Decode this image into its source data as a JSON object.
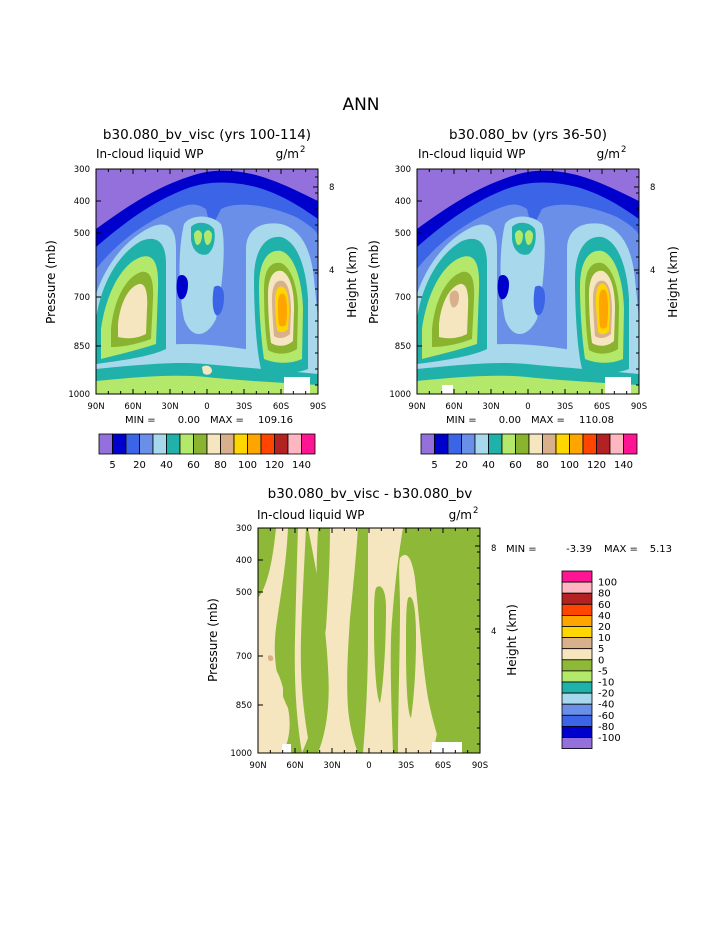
{
  "figure": {
    "super_title": "ANN",
    "colors": {
      "levels": [
        "#9370DB",
        "#0000CD",
        "#3C64E6",
        "#6A8FE8",
        "#A8D8EC",
        "#20B2AA",
        "#B4E86A",
        "#8AB430",
        "#F5E6C0",
        "#D8B08C",
        "#FFD700",
        "#FFA500",
        "#FF4500",
        "#B22222",
        "#FFB6C1",
        "#FF1493"
      ],
      "diff_green": "#8DB838",
      "diff_tan": "#F5E6C0"
    }
  },
  "chart_data": [
    {
      "type": "contour",
      "title": "b30.080_bv_visc (yrs 100-114)",
      "subtitle_left": "In-cloud liquid WP",
      "subtitle_right": "g/m",
      "units_sup": "2",
      "ylabel": "Pressure (mb)",
      "y2label": "Height (km)",
      "x_ticks": [
        "90N",
        "60N",
        "30N",
        "0",
        "30S",
        "60S",
        "90S"
      ],
      "y_ticks": [
        "300",
        "400",
        "500",
        "700",
        "850",
        "1000"
      ],
      "y2_ticks": [
        "8",
        "4"
      ],
      "min_label": "MIN =",
      "min_value": "0.00",
      "max_label": "MAX =",
      "max_value": "109.16",
      "colorbar_labels": [
        "5",
        "20",
        "40",
        "60",
        "80",
        "100",
        "120",
        "140"
      ]
    },
    {
      "type": "contour",
      "title": "b30.080_bv (yrs 36-50)",
      "subtitle_left": "In-cloud liquid WP",
      "subtitle_right": "g/m",
      "units_sup": "2",
      "ylabel": "Pressure (mb)",
      "y2label": "Height (km)",
      "x_ticks": [
        "90N",
        "60N",
        "30N",
        "0",
        "30S",
        "60S",
        "90S"
      ],
      "y_ticks": [
        "300",
        "400",
        "500",
        "700",
        "850",
        "1000"
      ],
      "y2_ticks": [
        "8",
        "4"
      ],
      "min_label": "MIN =",
      "min_value": "0.00",
      "max_label": "MAX =",
      "max_value": "110.08",
      "colorbar_labels": [
        "5",
        "20",
        "40",
        "60",
        "80",
        "100",
        "120",
        "140"
      ]
    },
    {
      "type": "contour",
      "title": "b30.080_bv_visc - b30.080_bv",
      "subtitle_left": "In-cloud liquid WP",
      "subtitle_right": "g/m",
      "units_sup": "2",
      "ylabel": "Pressure (mb)",
      "y2label": "Height (km)",
      "x_ticks": [
        "90N",
        "60N",
        "30N",
        "0",
        "30S",
        "60S",
        "90S"
      ],
      "y_ticks": [
        "300",
        "400",
        "500",
        "700",
        "850",
        "1000"
      ],
      "y2_ticks": [
        "8",
        "4"
      ],
      "min_label": "MIN =",
      "min_value": "-3.39",
      "max_label": "MAX =",
      "max_value": "5.13",
      "colorbar_labels": [
        "100",
        "80",
        "60",
        "40",
        "20",
        "10",
        "5",
        "0",
        "-5",
        "-10",
        "-20",
        "-40",
        "-60",
        "-80",
        "-100"
      ],
      "colorbar_colors": [
        "#FF1493",
        "#FFB6C1",
        "#B22222",
        "#FF4500",
        "#FFA500",
        "#FFD700",
        "#D8B08C",
        "#F5E6C0",
        "#8DB838",
        "#B4E86A",
        "#20B2AA",
        "#A8D8EC",
        "#6A8FE8",
        "#3C64E6",
        "#0000CD",
        "#9370DB"
      ]
    }
  ]
}
